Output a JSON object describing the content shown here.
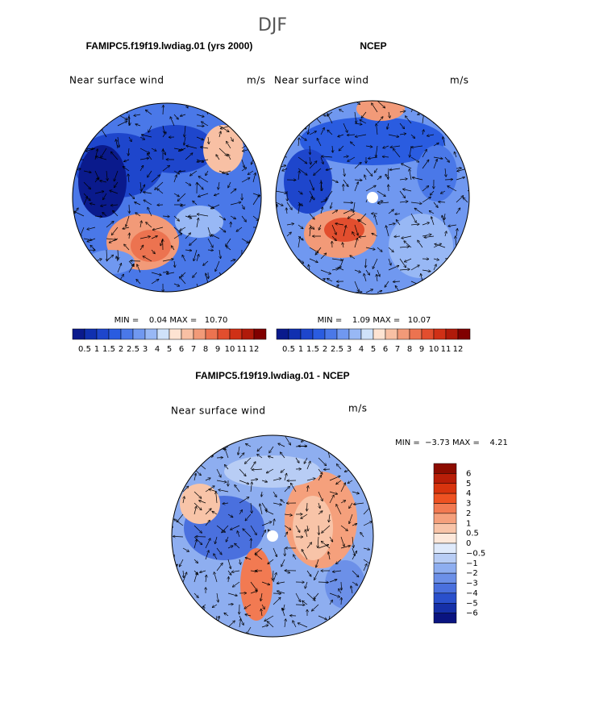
{
  "header": {
    "title": "DJF"
  },
  "panels": [
    {
      "title": "FAMIPC5.f19f19.lwdiag.01 (yrs 2000)",
      "variable": "Near surface wind",
      "units": "m/s",
      "stats": "MIN =    0.04 MAX =   10.70"
    },
    {
      "title": "NCEP",
      "variable": "Near surface wind",
      "units": "m/s",
      "stats": "MIN =    1.09 MAX =   10.07"
    },
    {
      "title": "FAMIPC5.f19f19.lwdiag.01 - NCEP",
      "variable": "Near surface wind",
      "units": "m/s",
      "stats": "MIN =  −3.73 MAX =    4.21"
    }
  ],
  "colorbar": {
    "labels": [
      "0.5",
      "1",
      "1.5",
      "2",
      "2.5",
      "3",
      "4",
      "5",
      "6",
      "7",
      "8",
      "9",
      "10",
      "11",
      "12"
    ],
    "colors": [
      "#0a1a8c",
      "#1030b0",
      "#1e46cc",
      "#2a5ce0",
      "#4a78e8",
      "#7098f0",
      "#98b8f5",
      "#cfe2fa",
      "#fde3d2",
      "#f8c0a4",
      "#f29a78",
      "#ec7350",
      "#e24e2e",
      "#d03016",
      "#b01a0a",
      "#800000"
    ]
  },
  "diff_colorbar": {
    "labels": [
      "6",
      "5",
      "4",
      "3",
      "2",
      "1",
      "0.5",
      "0",
      "−0.5",
      "−1",
      "−2",
      "−3",
      "−4",
      "−5",
      "−6"
    ],
    "colors": [
      "#8c0c00",
      "#b81e08",
      "#d8340e",
      "#ee5222",
      "#f27a52",
      "#f5a07c",
      "#f8c4a8",
      "#fde8da",
      "#dfeafb",
      "#b8cdf5",
      "#8eaef0",
      "#6c90e8",
      "#4a70de",
      "#2a50cc",
      "#1630a8",
      "#0a1480"
    ]
  }
}
